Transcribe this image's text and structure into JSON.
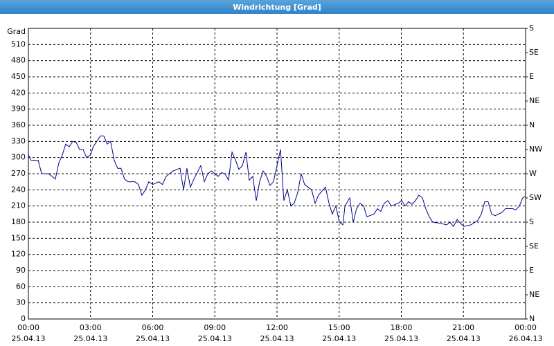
{
  "chart_data": {
    "type": "line",
    "title": "Windrichtung [Grad]",
    "ylabel": "Grad",
    "x": [
      0,
      0.13,
      0.3,
      0.47,
      0.64,
      0.8,
      0.97,
      1.14,
      1.3,
      1.47,
      1.64,
      1.8,
      1.97,
      2.14,
      2.31,
      2.47,
      2.64,
      2.81,
      3.0,
      3.13,
      3.3,
      3.47,
      3.64,
      3.8,
      3.97,
      4.14,
      4.31,
      4.47,
      4.64,
      4.81,
      5.14,
      5.31,
      5.48,
      5.65,
      5.81,
      6.0,
      6.3,
      6.47,
      6.65,
      6.81,
      6.98,
      7.32,
      7.49,
      7.65,
      7.82,
      7.99,
      8.32,
      8.49,
      8.66,
      8.83,
      9.0,
      9.16,
      9.32,
      9.49,
      9.66,
      9.83,
      10.0,
      10.16,
      10.33,
      10.5,
      10.66,
      10.83,
      11.0,
      11.16,
      11.33,
      11.5,
      11.66,
      11.83,
      12.0,
      12.17,
      12.33,
      12.5,
      12.67,
      12.83,
      13.0,
      13.17,
      13.33,
      13.5,
      13.67,
      13.84,
      14.0,
      14.34,
      14.51,
      14.67,
      14.84,
      15.01,
      15.18,
      15.28,
      15.51,
      15.68,
      15.84,
      16.01,
      16.18,
      16.34,
      16.68,
      16.85,
      17.01,
      17.18,
      17.35,
      17.51,
      17.85,
      18.02,
      18.18,
      18.35,
      18.52,
      18.68,
      18.85,
      19.02,
      19.18,
      19.35,
      19.52,
      19.85,
      20.19,
      20.35,
      20.52,
      20.69,
      20.85,
      21.02,
      21.36,
      21.69,
      21.86,
      22.03,
      22.19,
      22.36,
      22.53,
      22.86,
      23.03,
      23.36,
      23.53,
      23.7,
      23.86,
      24.0
    ],
    "series": [
      {
        "name": "Windrichtung",
        "color": "#00008b",
        "values": [
          305,
          295,
          295,
          295,
          270,
          270,
          270,
          265,
          260,
          290,
          305,
          325,
          320,
          330,
          328,
          315,
          315,
          300,
          305,
          320,
          330,
          340,
          340,
          325,
          330,
          295,
          280,
          280,
          260,
          255,
          255,
          250,
          230,
          240,
          255,
          250,
          255,
          250,
          265,
          270,
          275,
          280,
          240,
          280,
          245,
          260,
          285,
          255,
          270,
          275,
          270,
          265,
          272,
          270,
          258,
          310,
          295,
          278,
          285,
          310,
          258,
          265,
          220,
          255,
          275,
          265,
          248,
          255,
          285,
          315,
          220,
          240,
          210,
          215,
          235,
          270,
          250,
          245,
          240,
          215,
          230,
          245,
          215,
          195,
          210,
          180,
          175,
          210,
          225,
          180,
          205,
          215,
          210,
          190,
          195,
          205,
          200,
          215,
          220,
          210,
          215,
          220,
          210,
          218,
          213,
          220,
          230,
          225,
          205,
          190,
          180,
          178,
          175,
          180,
          172,
          185,
          178,
          172,
          175,
          183,
          195,
          218,
          218,
          195,
          192,
          198,
          205,
          205,
          203,
          210,
          225,
          228
        ]
      }
    ],
    "xlim": [
      0,
      24
    ],
    "xticks": [
      {
        "value": 0,
        "label": "00:00"
      },
      {
        "value": 3,
        "label": "03:00"
      },
      {
        "value": 6,
        "label": "06:00"
      },
      {
        "value": 9,
        "label": "09:00"
      },
      {
        "value": 12,
        "label": "12:00"
      },
      {
        "value": 15,
        "label": "15:00"
      },
      {
        "value": 18,
        "label": "18:00"
      },
      {
        "value": 21,
        "label": "21:00"
      },
      {
        "value": 24,
        "label": "00:00"
      }
    ],
    "xtick_dates": [
      "25.04.13",
      "25.04.13",
      "25.04.13",
      "25.04.13",
      "25.04.13",
      "25.04.13",
      "25.04.13",
      "25.04.13",
      "26.04.13"
    ],
    "ylim": [
      0,
      540
    ],
    "yticks": [
      0,
      30,
      60,
      90,
      120,
      150,
      180,
      210,
      240,
      270,
      300,
      330,
      360,
      390,
      420,
      450,
      480,
      510
    ],
    "y2lim": [
      0,
      540
    ],
    "y2ticks": [
      {
        "value": 0,
        "label": "N"
      },
      {
        "value": 45,
        "label": "NE"
      },
      {
        "value": 90,
        "label": "E"
      },
      {
        "value": 135,
        "label": "SE"
      },
      {
        "value": 180,
        "label": "S"
      },
      {
        "value": 225,
        "label": "SW"
      },
      {
        "value": 270,
        "label": "W"
      },
      {
        "value": 315,
        "label": "NW"
      },
      {
        "value": 360,
        "label": "N"
      },
      {
        "value": 405,
        "label": "NE"
      },
      {
        "value": 450,
        "label": "E"
      },
      {
        "value": 495,
        "label": "SE"
      },
      {
        "value": 540,
        "label": "S"
      }
    ],
    "grid": true
  }
}
